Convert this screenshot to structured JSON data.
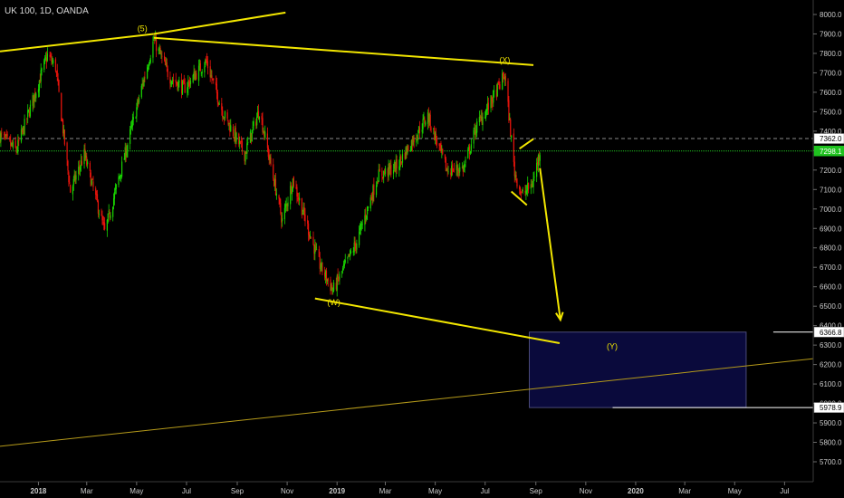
{
  "header": {
    "title": "UK 100, 1D, OANDA"
  },
  "colors": {
    "background": "#000000",
    "up": "#19d400",
    "down": "#e8140c",
    "trendline": "#f2e600",
    "trendline_thin": "#b59a1a",
    "current_price_line": "#1fc21f",
    "dashed_level": "#8a8a8a",
    "target_box_fill": "#0a0a3c",
    "target_box_stroke": "#4a4a7a",
    "axis_text": "#c9c9c9"
  },
  "chart_data": {
    "type": "candlestick",
    "title": "UK 100, 1D, OANDA",
    "xlabel": "",
    "ylabel": "",
    "ylim": [
      5600,
      8000
    ],
    "xlim": [
      "2017-11-15",
      "2020-08-05"
    ],
    "grid": false,
    "y_ticks": [
      "5700.0",
      "5800.0",
      "5900.0",
      "6000.0",
      "6100.0",
      "6200.0",
      "6300.0",
      "6400.0",
      "6500.0",
      "6600.0",
      "6700.0",
      "6800.0",
      "6900.0",
      "7000.0",
      "7100.0",
      "7200.0",
      "7300.0",
      "7400.0",
      "7500.0",
      "7600.0",
      "7700.0",
      "7800.0",
      "7900.0",
      "8000.0"
    ],
    "x_ticks": [
      {
        "label": "2018",
        "date": "2018-01-01",
        "bold": true
      },
      {
        "label": "Mar",
        "date": "2018-03-01"
      },
      {
        "label": "May",
        "date": "2018-05-01"
      },
      {
        "label": "Jul",
        "date": "2018-07-01"
      },
      {
        "label": "Sep",
        "date": "2018-09-01"
      },
      {
        "label": "Nov",
        "date": "2018-11-01"
      },
      {
        "label": "2019",
        "date": "2019-01-01",
        "bold": true
      },
      {
        "label": "Mar",
        "date": "2019-03-01"
      },
      {
        "label": "May",
        "date": "2019-05-01"
      },
      {
        "label": "Jul",
        "date": "2019-07-01"
      },
      {
        "label": "Sep",
        "date": "2019-09-01"
      },
      {
        "label": "Nov",
        "date": "2019-11-01"
      },
      {
        "label": "2020",
        "date": "2020-01-01",
        "bold": true
      },
      {
        "label": "Mar",
        "date": "2020-03-01"
      },
      {
        "label": "May",
        "date": "2020-05-01"
      },
      {
        "label": "Jul",
        "date": "2020-07-01"
      }
    ],
    "price_path": [
      {
        "date": "2017-11-15",
        "price": 7380
      },
      {
        "date": "2017-12-05",
        "price": 7300
      },
      {
        "date": "2018-01-12",
        "price": 7790
      },
      {
        "date": "2018-01-22",
        "price": 7730
      },
      {
        "date": "2018-02-09",
        "price": 7090
      },
      {
        "date": "2018-02-26",
        "price": 7280
      },
      {
        "date": "2018-03-23",
        "price": 6880
      },
      {
        "date": "2018-04-15",
        "price": 7250
      },
      {
        "date": "2018-05-22",
        "price": 7870
      },
      {
        "date": "2018-06-10",
        "price": 7680
      },
      {
        "date": "2018-06-28",
        "price": 7620
      },
      {
        "date": "2018-07-25",
        "price": 7760
      },
      {
        "date": "2018-08-15",
        "price": 7490
      },
      {
        "date": "2018-09-10",
        "price": 7280
      },
      {
        "date": "2018-09-28",
        "price": 7510
      },
      {
        "date": "2018-10-26",
        "price": 6940
      },
      {
        "date": "2018-11-08",
        "price": 7150
      },
      {
        "date": "2018-12-10",
        "price": 6720
      },
      {
        "date": "2018-12-27",
        "price": 6580
      },
      {
        "date": "2019-01-25",
        "price": 6830
      },
      {
        "date": "2019-02-20",
        "price": 7170
      },
      {
        "date": "2019-03-15",
        "price": 7220
      },
      {
        "date": "2019-04-22",
        "price": 7480
      },
      {
        "date": "2019-05-15",
        "price": 7200
      },
      {
        "date": "2019-06-05",
        "price": 7210
      },
      {
        "date": "2019-06-20",
        "price": 7420
      },
      {
        "date": "2019-07-08",
        "price": 7550
      },
      {
        "date": "2019-07-25",
        "price": 7690
      },
      {
        "date": "2019-08-06",
        "price": 7190
      },
      {
        "date": "2019-08-15",
        "price": 7070
      },
      {
        "date": "2019-08-28",
        "price": 7130
      },
      {
        "date": "2019-09-06",
        "price": 7300
      }
    ],
    "current_price": 7298.1,
    "current_price_label": "7298.1",
    "dashed_level": 7362.0,
    "dashed_level_label": "7362.0",
    "target_zone": {
      "label": "(Y)",
      "top": 6366.8,
      "bottom": 5978.9,
      "top_label": "6366.8",
      "bottom_label": "5978.9",
      "start": "2019-08-24",
      "end": "2020-05-15"
    },
    "trendlines": [
      {
        "name": "upper-rising",
        "points": [
          [
            "2017-11-15",
            7810
          ],
          [
            "2018-05-22",
            7900
          ]
        ]
      },
      {
        "name": "upper-rising-extension",
        "points": [
          [
            "2018-05-22",
            7900
          ],
          [
            "2018-10-30",
            8010
          ]
        ]
      },
      {
        "name": "top-channel",
        "points": [
          [
            "2018-05-22",
            7880
          ],
          [
            "2019-08-29",
            7740
          ]
        ]
      },
      {
        "name": "lower-channel",
        "points": [
          [
            "2018-12-05",
            6540
          ],
          [
            "2019-09-30",
            6310
          ]
        ]
      },
      {
        "name": "long-term-support",
        "points": [
          [
            "2017-11-15",
            5780
          ],
          [
            "2020-08-05",
            6230
          ]
        ]
      },
      {
        "name": "triangle-upper",
        "points": [
          [
            "2019-08-12",
            7310
          ],
          [
            "2019-08-29",
            7360
          ]
        ]
      },
      {
        "name": "triangle-lower",
        "points": [
          [
            "2019-08-02",
            7090
          ],
          [
            "2019-08-21",
            7020
          ]
        ]
      }
    ],
    "projection_arrow": {
      "from": [
        "2019-09-06",
        7210
      ],
      "to": [
        "2019-10-01",
        6430
      ]
    },
    "wave_labels": [
      {
        "text": "(5)",
        "date": "2018-05-08",
        "price": 7915
      },
      {
        "text": "(X)",
        "date": "2019-07-25",
        "price": 7752
      },
      {
        "text": "(W)",
        "date": "2018-12-28",
        "price": 6505
      }
    ]
  }
}
